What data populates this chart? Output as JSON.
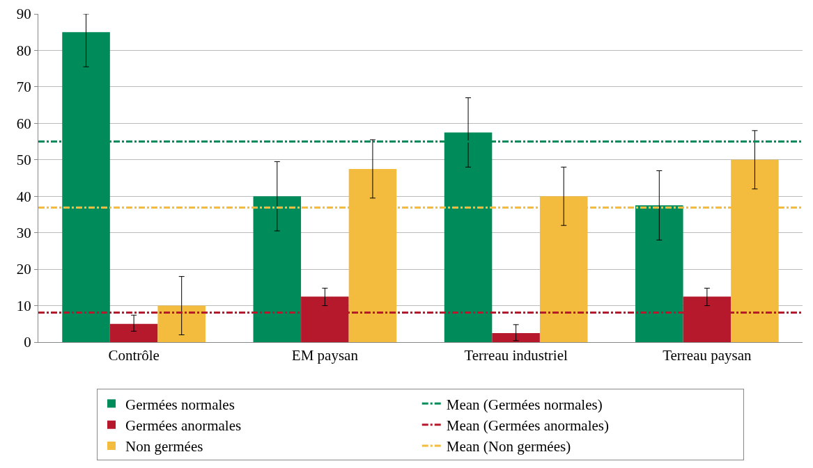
{
  "chart_data": {
    "type": "bar",
    "categories": [
      "Contrôle",
      "EM paysan",
      "Terreau industriel",
      "Terreau paysan"
    ],
    "series": [
      {
        "name": "Germées normales",
        "color": "#008c5a",
        "values": [
          85,
          40,
          57.5,
          37.5
        ],
        "errors": [
          [
            75.5,
            90
          ],
          [
            30.5,
            49.5
          ],
          [
            48,
            67
          ],
          [
            28,
            47
          ]
        ]
      },
      {
        "name": "Germées anormales",
        "color": "#b5192b",
        "values": [
          5,
          12.5,
          2.5,
          12.5
        ],
        "errors": [
          [
            3,
            7.4
          ],
          [
            10,
            14.8
          ],
          [
            0.4,
            4.8
          ],
          [
            10,
            14.8
          ]
        ]
      },
      {
        "name": "Non germées",
        "color": "#f4bc3e",
        "values": [
          10,
          47.5,
          40,
          50
        ],
        "errors": [
          [
            2,
            18
          ],
          [
            39.5,
            55.5
          ],
          [
            32,
            48
          ],
          [
            42,
            58
          ]
        ]
      }
    ],
    "ref_lines": [
      {
        "axis": "y",
        "value": 55,
        "label": "Mean (Germées normales)",
        "color": "#008c5a",
        "line_style": "dashed"
      },
      {
        "axis": "y",
        "value": 8.1,
        "label": "Mean (Germées anormales)",
        "color": "#b5192b",
        "line_style": "dashed"
      },
      {
        "axis": "y",
        "value": 36.9,
        "label": "Mean (Non germées)",
        "color": "#f4bc3e",
        "line_style": "dashed"
      }
    ],
    "ylim": [
      0,
      90
    ],
    "yticks": [
      0,
      10,
      20,
      30,
      40,
      50,
      60,
      70,
      80,
      90
    ],
    "grid": "y",
    "legend": "bottom"
  }
}
